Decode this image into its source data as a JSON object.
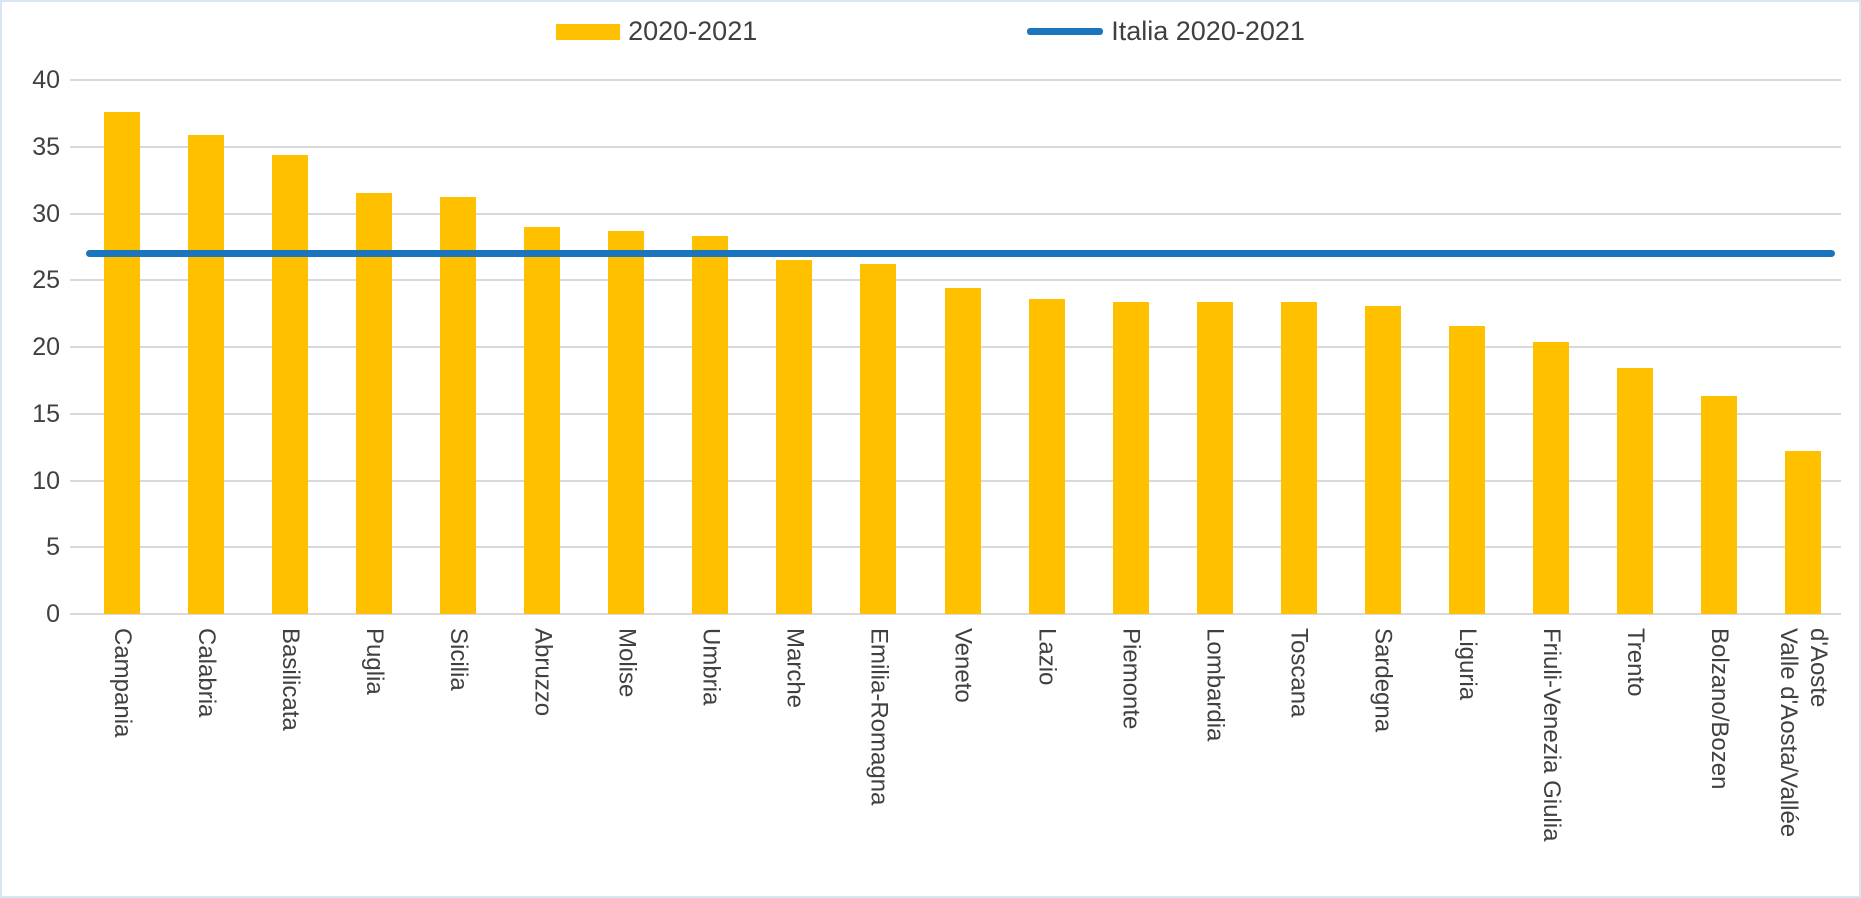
{
  "legend": {
    "items": [
      {
        "label": "2020-2021",
        "type": "bar"
      },
      {
        "label": "Italia 2020-2021",
        "type": "line"
      }
    ]
  },
  "chart_data": {
    "type": "bar",
    "title": "",
    "xlabel": "",
    "ylabel": "",
    "ylim": [
      0,
      40
    ],
    "yticks": [
      0,
      5,
      10,
      15,
      20,
      25,
      30,
      35,
      40
    ],
    "grid": true,
    "legend_position": "top",
    "categories": [
      "Campania",
      "Calabria",
      "Basilicata",
      "Puglia",
      "Sicilia",
      "Abruzzo",
      "Molise",
      "Umbria",
      "Marche",
      "Emilia-Romagna",
      "Veneto",
      "Lazio",
      "Piemonte",
      "Lombardia",
      "Toscana",
      "Sardegna",
      "Liguria",
      "Friuli-Venezia Giulia",
      "Trento",
      "Bolzano/Bozen",
      "Valle d'Aosta/Vallée d'Aoste"
    ],
    "series": [
      {
        "name": "2020-2021",
        "type": "bar",
        "color": "#FFC000",
        "values": [
          37.6,
          35.9,
          34.4,
          31.5,
          31.2,
          29.0,
          28.7,
          28.3,
          26.5,
          26.2,
          24.4,
          23.6,
          23.4,
          23.4,
          23.4,
          23.1,
          21.6,
          20.4,
          18.4,
          16.3,
          12.2
        ]
      },
      {
        "name": "Italia 2020-2021",
        "type": "line",
        "color": "#1B75BE",
        "value": 27.0
      }
    ]
  },
  "colors": {
    "bar": "#FFC000",
    "line": "#1B75BE",
    "gridline": "#D9D9D9",
    "text": "#404040",
    "background": "#FFFFFF",
    "border": "#D9E5F2"
  }
}
